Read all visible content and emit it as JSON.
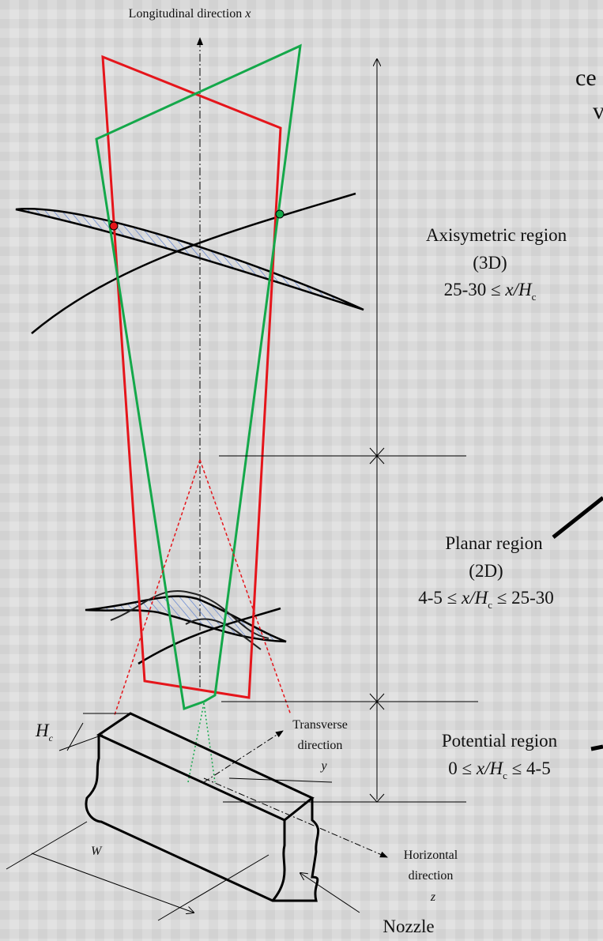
{
  "axis_labels": {
    "longitudinal": {
      "text": "Longitudinal direction",
      "var": "x"
    },
    "transverse": {
      "line1": "Transverse",
      "line2": "direction",
      "var": "y"
    },
    "horizontal": {
      "line1": "Horizontal",
      "line2": "direction",
      "var": "z"
    }
  },
  "fragments": [
    "ce",
    "v"
  ],
  "regions": [
    {
      "name": "Axisymetric region",
      "dim": "(3D)",
      "range": [
        "25-30 ≤ ",
        "x/H",
        "c"
      ]
    },
    {
      "name": "Planar region",
      "dim": "(2D)",
      "range": [
        "4-5 ≤ ",
        "x/H",
        "c",
        " ≤ 25-30"
      ]
    },
    {
      "name": "Potential region",
      "range": [
        "0 ≤ ",
        "x/H",
        "c",
        " ≤ 4-5"
      ]
    }
  ],
  "nozzle": {
    "label": "Nozzle",
    "height": [
      "H",
      "c"
    ],
    "width": "W"
  }
}
